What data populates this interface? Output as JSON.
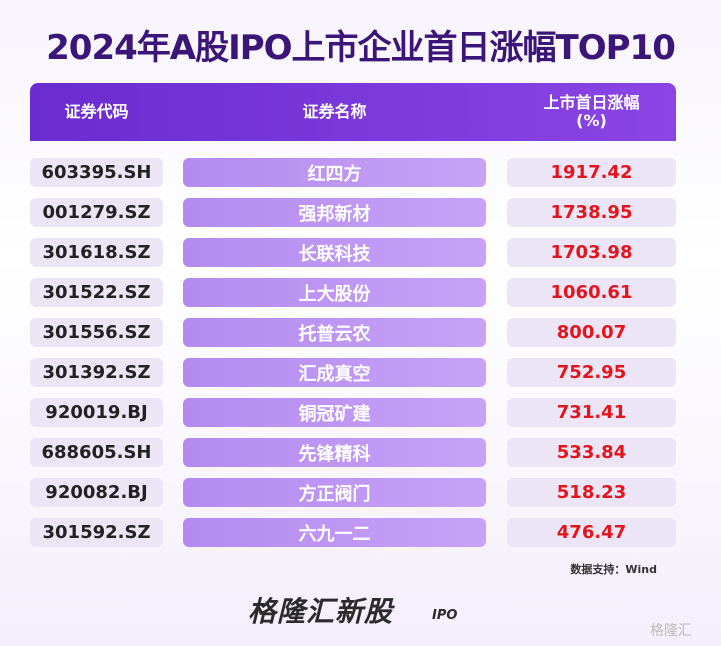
{
  "title": "2024年A股IPO上市企业首日涨幅TOP10",
  "table": {
    "columns": [
      "证券代码",
      "证券名称",
      "上市首日涨幅\n(%)"
    ],
    "rows": [
      [
        "603395.SH",
        "红四方",
        "1917.42"
      ],
      [
        "001279.SZ",
        "强邦新材",
        "1738.95"
      ],
      [
        "301618.SZ",
        "长联科技",
        "1703.98"
      ],
      [
        "301522.SZ",
        "上大股份",
        "1060.61"
      ],
      [
        "301556.SZ",
        "托普云农",
        "800.07"
      ],
      [
        "301392.SZ",
        "汇成真空",
        "752.95"
      ],
      [
        "920019.BJ",
        "铜冠矿建",
        "731.41"
      ],
      [
        "688605.SH",
        "先锋精科",
        "533.84"
      ],
      [
        "920082.BJ",
        "方正阀门",
        "518.23"
      ],
      [
        "301592.SZ",
        "六九一二",
        "476.47"
      ]
    ]
  },
  "source": "数据支持：Wind",
  "logo": {
    "name": "格隆汇新股",
    "sub": "IPO"
  },
  "watermark": "格隆汇"
}
